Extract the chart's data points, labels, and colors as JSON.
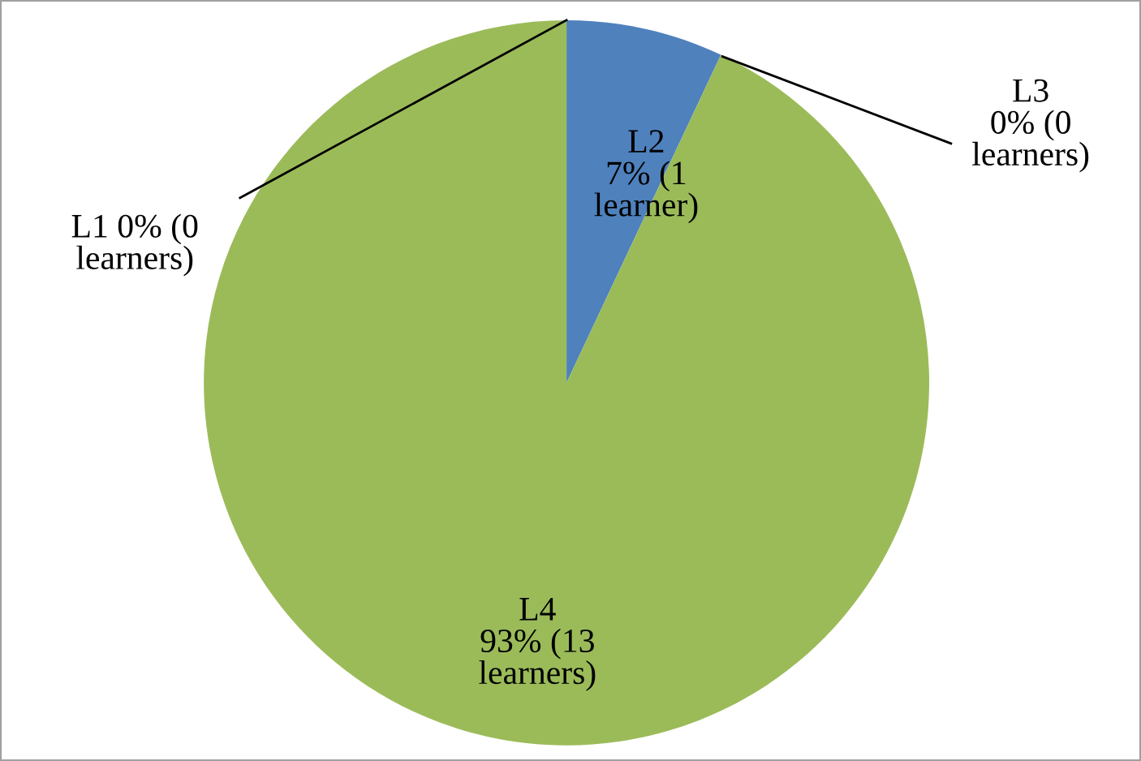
{
  "chart_data": {
    "type": "pie",
    "categories": [
      "L1",
      "L2",
      "L3",
      "L4"
    ],
    "values": [
      0,
      7,
      0,
      93
    ],
    "colors": [
      "#c0504d",
      "#4f81bd",
      "#8064a2",
      "#9bbb59"
    ],
    "value_labels": [
      "0% (0\nlearners)",
      "7% (1\nlearner)",
      "0% (0\nlearners)",
      "93% (13\nlearners)"
    ],
    "legend": false
  }
}
